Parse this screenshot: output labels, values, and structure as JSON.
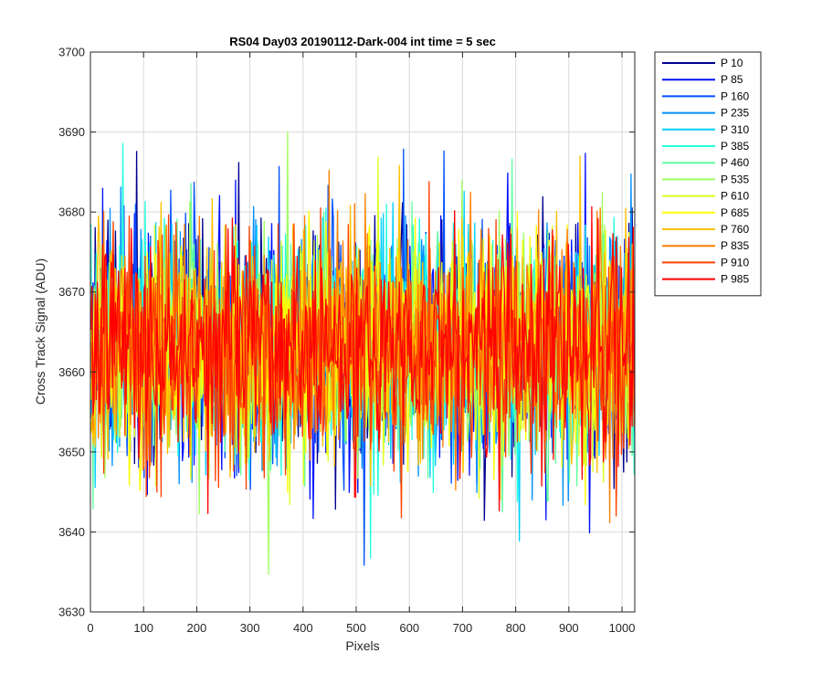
{
  "chart_data": {
    "type": "line",
    "title": "RS04 Day03 20190112-Dark-004 int time = 5 sec",
    "xlabel": "Pixels",
    "ylabel": "Cross Track Signal (ADU)",
    "xlim": [
      0,
      1024
    ],
    "ylim": [
      3630,
      3700
    ],
    "xticks": [
      0,
      100,
      200,
      300,
      400,
      500,
      600,
      700,
      800,
      900,
      1000
    ],
    "yticks": [
      3630,
      3640,
      3650,
      3660,
      3670,
      3680,
      3690,
      3700
    ],
    "grid": true,
    "legend_position": "outside-right",
    "mean": 3663,
    "noise_sd": 7,
    "series": [
      {
        "name": "P 10",
        "color": "#00008f"
      },
      {
        "name": "P 85",
        "color": "#0010ff"
      },
      {
        "name": "P 160",
        "color": "#0050ff"
      },
      {
        "name": "P 235",
        "color": "#0090ff"
      },
      {
        "name": "P 310",
        "color": "#00d0ff"
      },
      {
        "name": "P 385",
        "color": "#20ffdf"
      },
      {
        "name": "P 460",
        "color": "#60ff9f"
      },
      {
        "name": "P 535",
        "color": "#9fff60"
      },
      {
        "name": "P 610",
        "color": "#dfff20"
      },
      {
        "name": "P 685",
        "color": "#ffff00"
      },
      {
        "name": "P 760",
        "color": "#ffc000"
      },
      {
        "name": "P 835",
        "color": "#ff8000"
      },
      {
        "name": "P 910",
        "color": "#ff4000"
      },
      {
        "name": "P 985",
        "color": "#ff0000"
      }
    ]
  }
}
